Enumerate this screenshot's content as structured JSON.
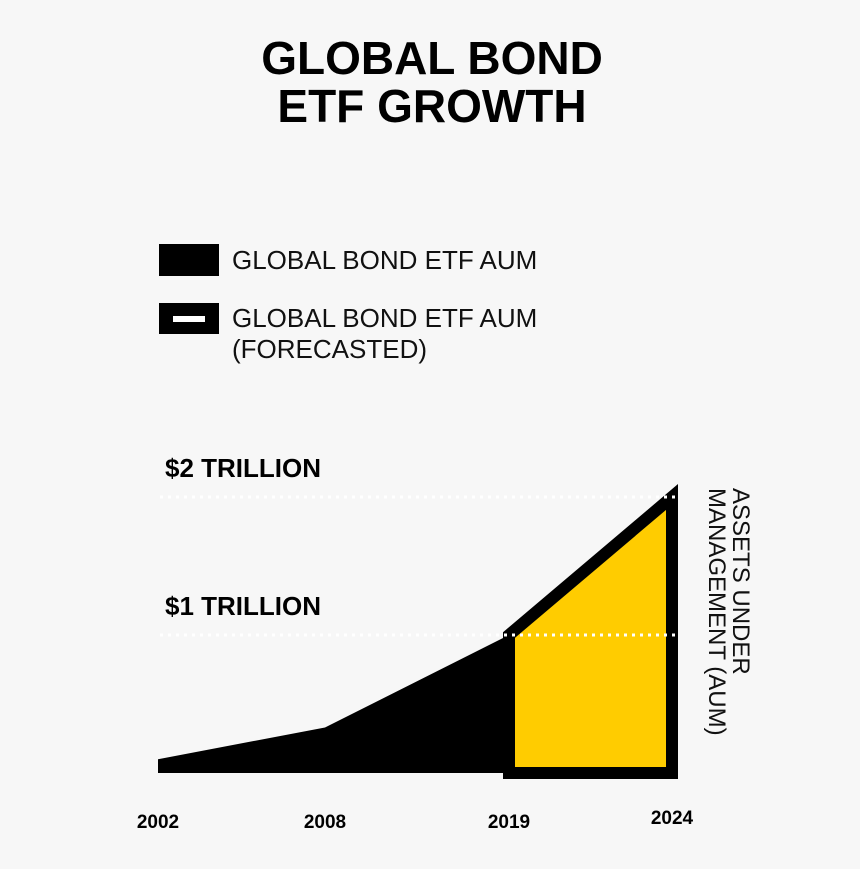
{
  "chart_data": {
    "type": "area",
    "title": "GLOBAL BOND ETF GROWTH",
    "y_label": "ASSETS UNDER MANAGEMENT (AUM)",
    "categories": [
      "2002",
      "2008",
      "2019",
      "2024"
    ],
    "series": [
      {
        "name": "GLOBAL BOND ETF AUM",
        "color": "#000000",
        "values": [
          0.1,
          0.33,
          1.0,
          null
        ]
      },
      {
        "name": "GLOBAL BOND ETF AUM (FORECASTED)",
        "color": "#ffcc00",
        "values": [
          null,
          null,
          1.0,
          2.0
        ]
      }
    ],
    "ylim": [
      0,
      2.1
    ],
    "yticks": [
      {
        "value": 1,
        "label": "$1 TRILLION"
      },
      {
        "value": 2,
        "label": "$2 TRILLION"
      }
    ],
    "grid": true
  }
}
